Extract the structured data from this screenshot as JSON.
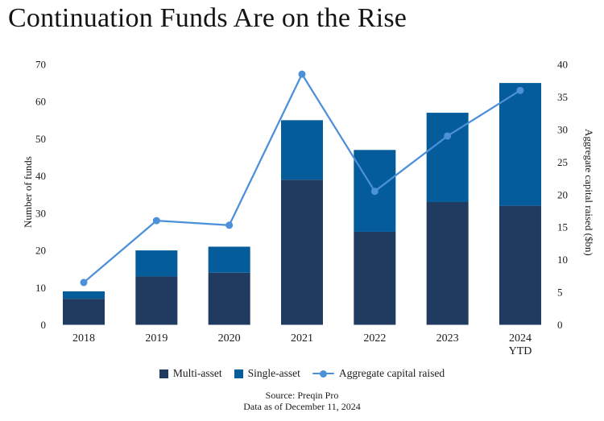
{
  "title": "Continuation Funds Are on the Rise",
  "chart_data": {
    "type": "bar",
    "stacked": true,
    "secondary_axis_line": true,
    "categories": [
      "2018",
      "2019",
      "2020",
      "2021",
      "2022",
      "2023",
      "2024 YTD"
    ],
    "categories_display": [
      [
        "2018"
      ],
      [
        "2019"
      ],
      [
        "2020"
      ],
      [
        "2021"
      ],
      [
        "2022"
      ],
      [
        "2023"
      ],
      [
        "2024",
        "YTD"
      ]
    ],
    "series": [
      {
        "name": "Multi-asset",
        "values": [
          7,
          13,
          14,
          39,
          25,
          33,
          32
        ],
        "color": "#213a60"
      },
      {
        "name": "Single-asset",
        "values": [
          2,
          7,
          7,
          16,
          22,
          24,
          33
        ],
        "color": "#045c9b"
      }
    ],
    "line_series": {
      "name": "Aggregate capital raised",
      "axis": "right",
      "values": [
        6.5,
        16,
        15.3,
        38.5,
        20.5,
        29,
        36
      ],
      "color": "#4b90d9"
    },
    "bar_totals": [
      9,
      20,
      21,
      55,
      47,
      57,
      65
    ],
    "title": "Continuation Funds Are on the Rise",
    "ylabel_left": "Number of funds",
    "ylabel_right": "Aggregate capital raised ($bn)",
    "ylim_left": [
      0,
      70
    ],
    "ylim_right": [
      0,
      40
    ],
    "yticks_left": [
      0,
      10,
      20,
      30,
      40,
      50,
      60,
      70
    ],
    "yticks_right": [
      0,
      5,
      10,
      15,
      20,
      25,
      30,
      35,
      40
    ],
    "grid": false,
    "legend_position": "bottom"
  },
  "legend": {
    "items": [
      {
        "label": "Multi-asset",
        "swatch": "square",
        "color": "#213a60"
      },
      {
        "label": "Single-asset",
        "swatch": "square",
        "color": "#045c9b"
      },
      {
        "label": "Aggregate capital raised",
        "swatch": "line-dot",
        "color": "#4b90d9"
      }
    ]
  },
  "footer": {
    "source": "Source: Preqin Pro",
    "as_of": "Data as of December 11, 2024"
  },
  "colors": {
    "multi_asset": "#213a60",
    "single_asset": "#045c9b",
    "line": "#4b90d9",
    "text": "#1b1b1b",
    "background": "#ffffff"
  }
}
